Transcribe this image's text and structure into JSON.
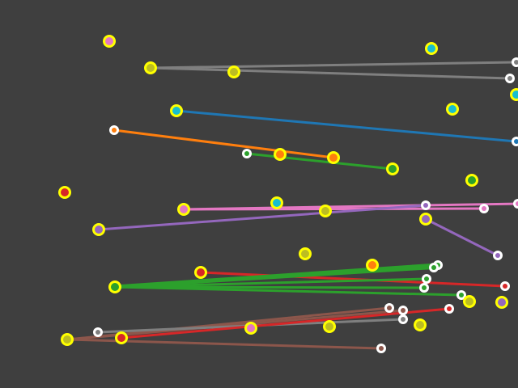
{
  "scene": {
    "background": "#3f3f3f",
    "ring_colors": {
      "highlight": "#ffff00",
      "plain": "#ffffff"
    },
    "series": [
      {
        "key": "gray-top",
        "color": "#7f7f7f"
      },
      {
        "key": "blue",
        "color": "#1f77b4"
      },
      {
        "key": "orange",
        "color": "#ff7f0e"
      },
      {
        "key": "green",
        "color": "#2ca02c"
      },
      {
        "key": "pink",
        "color": "#e377c2"
      },
      {
        "key": "purple",
        "color": "#9467bd"
      },
      {
        "key": "red",
        "color": "#d62728"
      },
      {
        "key": "brown",
        "color": "#8c564b"
      },
      {
        "key": "gray-bottom",
        "color": "#7f7f7f"
      }
    ]
  }
}
